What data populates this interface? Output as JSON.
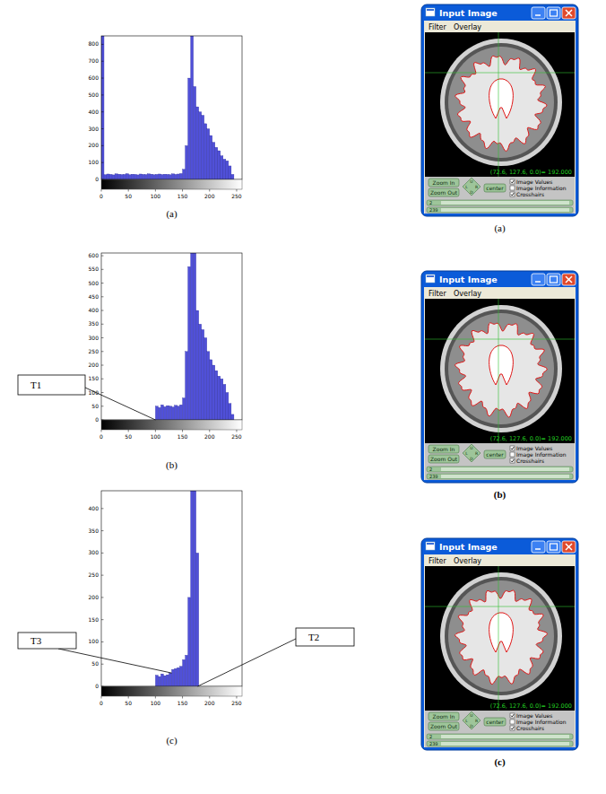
{
  "chart_data": [
    {
      "type": "histogram",
      "caption": "(a)",
      "bins": [
        0,
        5,
        10,
        15,
        20,
        25,
        30,
        35,
        40,
        45,
        50,
        55,
        60,
        65,
        70,
        75,
        80,
        85,
        90,
        95,
        100,
        105,
        110,
        115,
        120,
        125,
        130,
        135,
        140,
        145,
        150,
        155,
        160,
        165,
        170,
        175,
        180,
        185,
        190,
        195,
        200,
        205,
        210,
        215,
        220,
        225,
        230,
        235,
        240,
        245,
        250,
        255,
        260
      ],
      "values": [
        850,
        28,
        32,
        30,
        27,
        33,
        31,
        29,
        30,
        34,
        28,
        31,
        30,
        27,
        32,
        30,
        29,
        33,
        31,
        28,
        30,
        32,
        29,
        31,
        30,
        28,
        33,
        30,
        32,
        35,
        60,
        200,
        600,
        850,
        550,
        430,
        400,
        380,
        330,
        300,
        260,
        220,
        190,
        170,
        140,
        120,
        110,
        80,
        30,
        0,
        0,
        0
      ],
      "color": "#5050d8",
      "xlim": [
        0,
        260
      ],
      "ylim": [
        0,
        850
      ],
      "xticks": [
        0,
        50,
        100,
        150,
        200,
        250
      ],
      "yticks": [
        0,
        100,
        200,
        300,
        400,
        500,
        600,
        700,
        800
      ],
      "annotations": []
    },
    {
      "type": "histogram",
      "caption": "(b)",
      "bins": [
        0,
        5,
        10,
        15,
        20,
        25,
        30,
        35,
        40,
        45,
        50,
        55,
        60,
        65,
        70,
        75,
        80,
        85,
        90,
        95,
        100,
        105,
        110,
        115,
        120,
        125,
        130,
        135,
        140,
        145,
        150,
        155,
        160,
        165,
        170,
        175,
        180,
        185,
        190,
        195,
        200,
        205,
        210,
        215,
        220,
        225,
        230,
        235,
        240,
        245,
        250,
        255,
        260
      ],
      "values": [
        0,
        0,
        0,
        0,
        0,
        0,
        0,
        0,
        0,
        0,
        0,
        0,
        0,
        0,
        0,
        0,
        0,
        0,
        0,
        0,
        50,
        45,
        55,
        48,
        52,
        50,
        47,
        53,
        50,
        55,
        80,
        250,
        560,
        610,
        610,
        400,
        350,
        330,
        300,
        250,
        220,
        200,
        180,
        160,
        150,
        130,
        100,
        60,
        20,
        0,
        0,
        0
      ],
      "color": "#5050d8",
      "xlim": [
        0,
        260
      ],
      "ylim": [
        0,
        610
      ],
      "xticks": [
        0,
        50,
        100,
        150,
        200,
        250
      ],
      "yticks": [
        0,
        50,
        100,
        150,
        200,
        250,
        300,
        350,
        400,
        450,
        500,
        550,
        600
      ],
      "annotations": [
        {
          "text": "T1",
          "x": 100,
          "y": 0
        }
      ]
    },
    {
      "type": "histogram",
      "caption": "(c)",
      "bins": [
        0,
        5,
        10,
        15,
        20,
        25,
        30,
        35,
        40,
        45,
        50,
        55,
        60,
        65,
        70,
        75,
        80,
        85,
        90,
        95,
        100,
        105,
        110,
        115,
        120,
        125,
        130,
        135,
        140,
        145,
        150,
        155,
        160,
        165,
        170,
        175,
        180,
        185,
        190,
        195,
        200,
        205,
        210,
        215,
        220,
        225,
        230,
        235,
        240,
        245,
        250,
        255,
        260
      ],
      "values": [
        0,
        0,
        0,
        0,
        0,
        0,
        0,
        0,
        0,
        0,
        0,
        0,
        0,
        0,
        0,
        0,
        0,
        0,
        0,
        0,
        25,
        22,
        28,
        24,
        26,
        30,
        38,
        40,
        42,
        45,
        60,
        70,
        200,
        440,
        440,
        300,
        0,
        0,
        0,
        0,
        0,
        0,
        0,
        0,
        0,
        0,
        0,
        0,
        0,
        0,
        0,
        0
      ],
      "color": "#5050d8",
      "xlim": [
        0,
        260
      ],
      "ylim": [
        0,
        440
      ],
      "xticks": [
        0,
        50,
        100,
        150,
        200,
        250
      ],
      "yticks": [
        0,
        50,
        100,
        150,
        200,
        250,
        300,
        350,
        400
      ],
      "annotations": [
        {
          "text": "T2",
          "x": 178,
          "y": 0
        },
        {
          "text": "T3",
          "x": 130,
          "y": 30
        }
      ]
    }
  ],
  "windows": [
    {
      "title": "Input Image",
      "menu": [
        "Filter",
        "Overlay"
      ],
      "coordinate": "(72.6, 127.6, 0.0)= 192.000",
      "buttons": [
        "Zoom In",
        "Zoom Out",
        "center"
      ],
      "nav": [
        "U",
        "L",
        "R",
        "D"
      ],
      "checkboxes": [
        {
          "label": "Image Values",
          "checked": true
        },
        {
          "label": "Image Information",
          "checked": false
        },
        {
          "label": "Crosshairs",
          "checked": true
        }
      ],
      "sliders": [
        "2",
        "239"
      ],
      "caption": "(a)",
      "bold": false
    },
    {
      "title": "Input Image",
      "menu": [
        "Filter",
        "Overlay"
      ],
      "coordinate": "(72.6, 127.6, 0.0)= 192.000",
      "buttons": [
        "Zoom In",
        "Zoom Out",
        "center"
      ],
      "nav": [
        "U",
        "L",
        "R",
        "D"
      ],
      "checkboxes": [
        {
          "label": "Image Values",
          "checked": true
        },
        {
          "label": "Image Information",
          "checked": false
        },
        {
          "label": "Crosshairs",
          "checked": true
        }
      ],
      "sliders": [
        "2",
        "239"
      ],
      "caption": "(b)",
      "bold": true
    },
    {
      "title": "Input Image",
      "menu": [
        "Filter",
        "Overlay"
      ],
      "coordinate": "(72.6, 127.6, 0.0)= 192.000",
      "buttons": [
        "Zoom In",
        "Zoom Out",
        "center"
      ],
      "nav": [
        "U",
        "L",
        "R",
        "D"
      ],
      "checkboxes": [
        {
          "label": "Image Values",
          "checked": true
        },
        {
          "label": "Image Information",
          "checked": false
        },
        {
          "label": "Crosshairs",
          "checked": true
        }
      ],
      "sliders": [
        "2",
        "239"
      ],
      "caption": "(c)",
      "bold": true
    }
  ]
}
